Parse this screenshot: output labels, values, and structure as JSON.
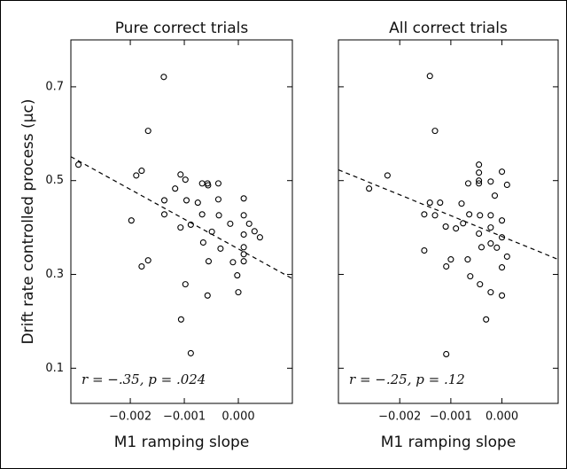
{
  "chart_data": [
    {
      "type": "scatter",
      "title": "Pure correct trials",
      "xlabel": "M1 ramping slope",
      "ylabel": "Drift rate controlled process (μc)",
      "annotation": "r = −.35, p = .024",
      "color": "#000000",
      "xlim": [
        -0.0031,
        0.001
      ],
      "ylim": [
        0.025,
        0.8
      ],
      "xticks": [
        {
          "value": -0.002,
          "label": "−0.002"
        },
        {
          "value": -0.001,
          "label": "−0.001"
        },
        {
          "value": 0,
          "label": "0.000"
        }
      ],
      "yticks": [
        0.1,
        0.3,
        0.5,
        0.7
      ],
      "x": [
        -0.00296,
        -0.00138,
        -0.00167,
        -0.00179,
        -0.00189,
        -0.00198,
        -0.00167,
        -0.00179,
        -0.00107,
        -0.00098,
        -0.00117,
        -0.00137,
        -0.00137,
        -0.00096,
        -0.00107,
        -0.00088,
        -0.00075,
        -0.00067,
        -0.00067,
        -0.00057,
        -0.00056,
        -0.00037,
        -0.00037,
        -0.00036,
        -0.00065,
        -0.00049,
        -0.00015,
        -0.00055,
        -0.00033,
        -0.0001,
        -2e-05,
        -0.00057,
        -0.00098,
        0.0,
        -0.00106,
        -0.00088,
        0.0002,
        0.0003,
        0.0004,
        0.0001,
        0.0001,
        0.0001,
        0.0001,
        0.0001,
        0.0001
      ],
      "y": [
        0.534,
        0.721,
        0.606,
        0.521,
        0.511,
        0.415,
        0.33,
        0.317,
        0.513,
        0.502,
        0.483,
        0.458,
        0.428,
        0.458,
        0.4,
        0.406,
        0.453,
        0.428,
        0.494,
        0.494,
        0.49,
        0.494,
        0.46,
        0.426,
        0.368,
        0.391,
        0.408,
        0.328,
        0.355,
        0.326,
        0.298,
        0.255,
        0.279,
        0.262,
        0.204,
        0.132,
        0.408,
        0.392,
        0.379,
        0.385,
        0.358,
        0.343,
        0.328,
        0.426,
        0.462
      ],
      "fit": {
        "x": [
          -0.0031,
          0.001
        ],
        "y": [
          0.551,
          0.291
        ]
      }
    },
    {
      "type": "scatter",
      "title": "All correct trials",
      "xlabel": "M1 ramping slope",
      "annotation": "r = −.25, p = .12",
      "color": "#000000",
      "xlim": [
        -0.0032,
        0.0011
      ],
      "ylim": [
        0.025,
        0.8
      ],
      "xticks": [
        {
          "value": -0.002,
          "label": "−0.002"
        },
        {
          "value": -0.001,
          "label": "−0.001"
        },
        {
          "value": 0,
          "label": "0.000"
        }
      ],
      "yticks": [
        0.1,
        0.3,
        0.5,
        0.7
      ],
      "x": [
        -0.0026,
        -0.00224,
        -0.00141,
        -0.00131,
        -0.00141,
        -0.00152,
        -0.00131,
        -0.00121,
        -0.00152,
        -0.0011,
        -0.00109,
        -0.001,
        -0.00109,
        -0.0009,
        -0.00079,
        -0.00076,
        -0.00064,
        -0.00066,
        -0.00045,
        -0.00045,
        -0.00045,
        -0.00045,
        -0.00043,
        -0.00045,
        -0.00022,
        -0.00022,
        -0.00022,
        -0.00022,
        -0.00014,
        0.0,
        0.0001,
        0.0,
        0.0,
        0.0001,
        -0.0001,
        0.0,
        -0.0004,
        -0.00067,
        -0.00062,
        -0.00043,
        -0.00022,
        0.0,
        -0.00031
      ],
      "y": [
        0.483,
        0.511,
        0.723,
        0.606,
        0.453,
        0.428,
        0.426,
        0.453,
        0.351,
        0.402,
        0.13,
        0.332,
        0.317,
        0.398,
        0.451,
        0.409,
        0.428,
        0.494,
        0.534,
        0.517,
        0.5,
        0.494,
        0.426,
        0.387,
        0.498,
        0.426,
        0.4,
        0.366,
        0.468,
        0.519,
        0.491,
        0.379,
        0.415,
        0.338,
        0.357,
        0.315,
        0.358,
        0.332,
        0.296,
        0.279,
        0.262,
        0.255,
        0.204
      ],
      "fit": {
        "x": [
          -0.0032,
          0.0011
        ],
        "y": [
          0.523,
          0.332
        ]
      }
    }
  ]
}
